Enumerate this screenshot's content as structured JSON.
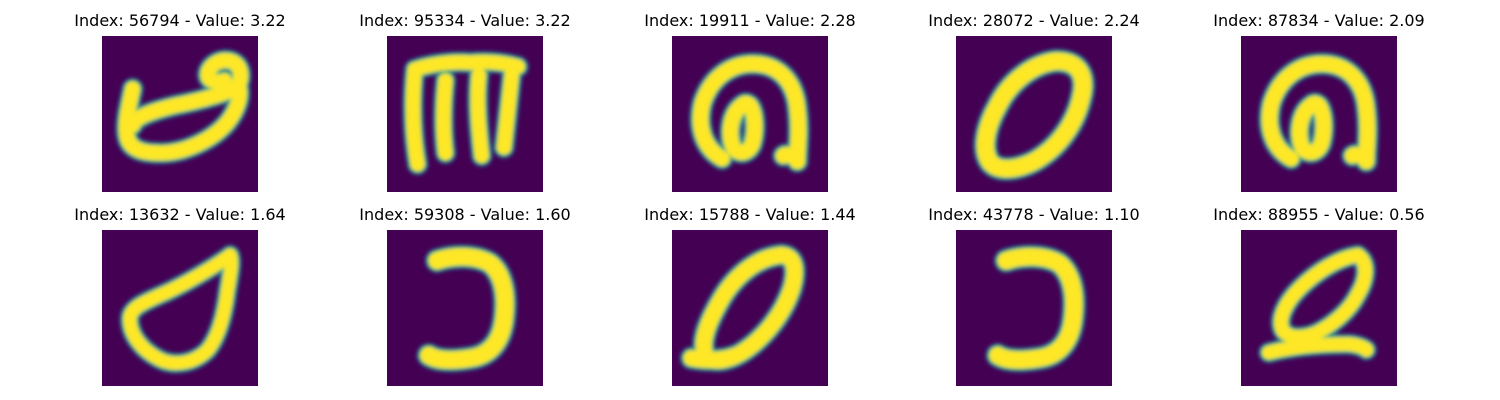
{
  "chart_data": {
    "type": "image-grid",
    "title": "",
    "layout": {
      "rows": 2,
      "columns": 5
    },
    "colormap": "viridis",
    "colors": {
      "background": "#440154",
      "mid_low": "#31688e",
      "mid_high": "#35b779",
      "foreground": "#fde725"
    },
    "panels": [
      {
        "title": "Index: 56794 - Value: 3.22",
        "index": 56794,
        "value": 3.22,
        "glyph": "cursive-loop-with-top-hook"
      },
      {
        "title": "Index: 95334 - Value: 3.22",
        "index": 95334,
        "value": 3.22,
        "glyph": "m-shaped-three-stroke"
      },
      {
        "title": "Index: 19911 - Value: 2.28",
        "index": 19911,
        "value": 2.28,
        "glyph": "looped-n-shape"
      },
      {
        "title": "Index: 28072 - Value: 2.24",
        "index": 28072,
        "value": 2.24,
        "glyph": "slanted-zero"
      },
      {
        "title": "Index: 87834 - Value: 2.09",
        "index": 87834,
        "value": 2.09,
        "glyph": "looped-n-shape"
      },
      {
        "title": "Index: 13632 - Value: 1.64",
        "index": 13632,
        "value": 1.64,
        "glyph": "teardrop-loop"
      },
      {
        "title": "Index: 59308 - Value: 1.60",
        "index": 59308,
        "value": 1.6,
        "glyph": "reversed-c-curve"
      },
      {
        "title": "Index: 15788 - Value: 1.44",
        "index": 15788,
        "value": 1.44,
        "glyph": "slanted-zero-with-tail"
      },
      {
        "title": "Index: 43778 - Value: 1.10",
        "index": 43778,
        "value": 1.1,
        "glyph": "reversed-c-curve"
      },
      {
        "title": "Index: 88955 - Value: 0.56",
        "index": 88955,
        "value": 0.56,
        "glyph": "slanted-loop-with-base"
      }
    ]
  }
}
